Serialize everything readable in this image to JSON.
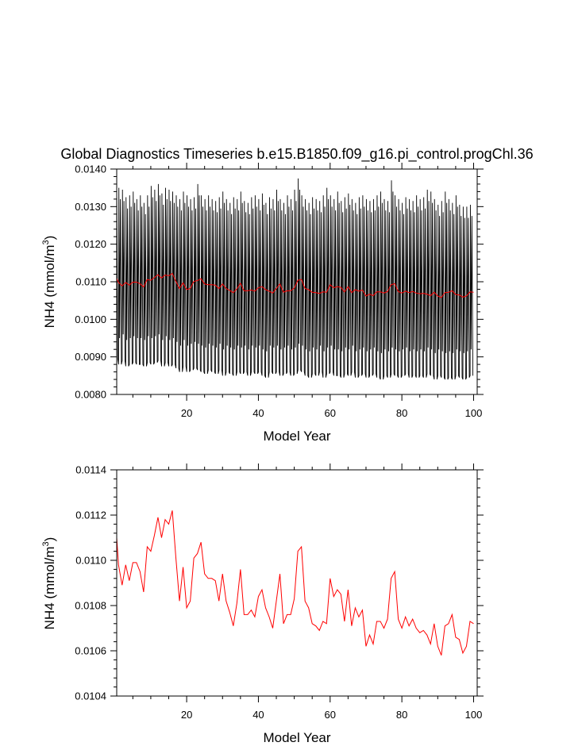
{
  "figure": {
    "title": "Global Diagnostics Timeseries b.e15.B1850.f09_g16.pi_control.progChl.36"
  },
  "colors": {
    "monthly_series": "#000000",
    "annual_series": "#ff0000",
    "axes": "#000000"
  },
  "chart_data": [
    {
      "type": "line",
      "xlabel": "Model Year",
      "ylabel_main": "NH4 (mmol/m",
      "ylabel_sup": "3",
      "ylabel_close": ")",
      "xlim": [
        0.5,
        101
      ],
      "ylim": [
        0.008,
        0.014
      ],
      "x_ticks": [
        20,
        40,
        60,
        80,
        100
      ],
      "x_tick_labels": [
        "20",
        "40",
        "60",
        "80",
        "100"
      ],
      "y_ticks": [
        0.008,
        0.009,
        0.01,
        0.011,
        0.012,
        0.013,
        0.014
      ],
      "y_tick_labels": [
        "0.0080",
        "0.0090",
        "0.0100",
        "0.0110",
        "0.0120",
        "0.0130",
        "0.0140"
      ],
      "grid": false,
      "monthly_envelope": {
        "years": [
          1,
          2,
          3,
          4,
          5,
          6,
          7,
          8,
          9,
          10,
          11,
          12,
          13,
          14,
          15,
          16,
          17,
          18,
          19,
          20,
          21,
          22,
          23,
          24,
          25,
          26,
          27,
          28,
          29,
          30,
          31,
          32,
          33,
          34,
          35,
          36,
          37,
          38,
          39,
          40,
          41,
          42,
          43,
          44,
          45,
          46,
          47,
          48,
          49,
          50,
          51,
          52,
          53,
          54,
          55,
          56,
          57,
          58,
          59,
          60,
          61,
          62,
          63,
          64,
          65,
          66,
          67,
          68,
          69,
          70,
          71,
          72,
          73,
          74,
          75,
          76,
          77,
          78,
          79,
          80,
          81,
          82,
          83,
          84,
          85,
          86,
          87,
          88,
          89,
          90,
          91,
          92,
          93,
          94,
          95,
          96,
          97,
          98,
          99,
          100
        ],
        "max": [
          0.01355,
          0.0135,
          0.01345,
          0.01325,
          0.0133,
          0.0134,
          0.0132,
          0.0133,
          0.0131,
          0.0133,
          0.01355,
          0.01345,
          0.0136,
          0.01335,
          0.0135,
          0.01345,
          0.0134,
          0.0133,
          0.0132,
          0.0134,
          0.0133,
          0.0132,
          0.01325,
          0.0136,
          0.0133,
          0.0132,
          0.0133,
          0.0132,
          0.01315,
          0.01325,
          0.0134,
          0.0132,
          0.0131,
          0.01325,
          0.0132,
          0.0134,
          0.01315,
          0.0131,
          0.01325,
          0.0133,
          0.0132,
          0.01335,
          0.0131,
          0.01325,
          0.0132,
          0.01345,
          0.0132,
          0.0131,
          0.0133,
          0.0132,
          0.01345,
          0.01375,
          0.0133,
          0.0132,
          0.0131,
          0.01325,
          0.0132,
          0.01315,
          0.0133,
          0.0135,
          0.0133,
          0.0132,
          0.0134,
          0.01315,
          0.01325,
          0.01335,
          0.0132,
          0.0131,
          0.01325,
          0.0133,
          0.0132,
          0.01315,
          0.0132,
          0.0133,
          0.0134,
          0.0132,
          0.01315,
          0.0137,
          0.0133,
          0.0132,
          0.0131,
          0.01325,
          0.0132,
          0.01315,
          0.0133,
          0.0132,
          0.01325,
          0.01345,
          0.0134,
          0.0132,
          0.01305,
          0.01315,
          0.0134,
          0.0132,
          0.0131,
          0.0133,
          0.01305,
          0.013,
          0.013,
          0.01305
        ],
        "min": [
          0.00895,
          0.0088,
          0.0089,
          0.00875,
          0.0088,
          0.00885,
          0.0088,
          0.0088,
          0.00875,
          0.00885,
          0.0088,
          0.00885,
          0.0089,
          0.00875,
          0.00885,
          0.00875,
          0.0088,
          0.0087,
          0.0086,
          0.00875,
          0.0086,
          0.00865,
          0.0087,
          0.00865,
          0.0086,
          0.00855,
          0.00865,
          0.0086,
          0.00855,
          0.00865,
          0.0085,
          0.0086,
          0.00855,
          0.0085,
          0.0086,
          0.00855,
          0.0086,
          0.0085,
          0.0086,
          0.00855,
          0.0086,
          0.0085,
          0.00845,
          0.0086,
          0.00855,
          0.0086,
          0.0085,
          0.00855,
          0.0086,
          0.0085,
          0.00855,
          0.00865,
          0.0086,
          0.0085,
          0.00845,
          0.00855,
          0.0085,
          0.0086,
          0.00845,
          0.00855,
          0.0086,
          0.0085,
          0.0085,
          0.00845,
          0.00855,
          0.0085,
          0.0086,
          0.00845,
          0.0085,
          0.00855,
          0.00845,
          0.0085,
          0.00855,
          0.00845,
          0.0084,
          0.0085,
          0.00845,
          0.00855,
          0.0085,
          0.00845,
          0.0085,
          0.00855,
          0.00845,
          0.0085,
          0.00845,
          0.0085,
          0.00845,
          0.00855,
          0.0085,
          0.0084,
          0.0085,
          0.00845,
          0.0084,
          0.00845,
          0.0084,
          0.0085,
          0.00845,
          0.0084,
          0.00845,
          0.0085
        ]
      },
      "annual_mean": {
        "x": [
          0.5,
          1,
          2,
          3,
          4,
          5,
          6,
          7,
          8,
          9,
          10,
          11,
          12,
          13,
          14,
          15,
          16,
          17,
          18,
          19,
          20,
          21,
          22,
          23,
          24,
          25,
          26,
          27,
          28,
          29,
          30,
          31,
          32,
          33,
          34,
          35,
          36,
          37,
          38,
          39,
          40,
          41,
          42,
          43,
          44,
          45,
          46,
          47,
          48,
          49,
          50,
          51,
          52,
          53,
          54,
          55,
          56,
          57,
          58,
          59,
          60,
          61,
          62,
          63,
          64,
          65,
          66,
          67,
          68,
          69,
          70,
          71,
          72,
          73,
          74,
          75,
          76,
          77,
          78,
          79,
          80,
          81,
          82,
          83,
          84,
          85,
          86,
          87,
          88,
          89,
          90,
          91,
          92,
          93,
          94,
          95,
          96,
          97,
          98,
          99,
          100
        ],
        "y": [
          0.0111,
          0.01098,
          0.01089,
          0.01098,
          0.01091,
          0.01099,
          0.01099,
          0.01095,
          0.01086,
          0.01106,
          0.01104,
          0.01111,
          0.01119,
          0.0111,
          0.01118,
          0.01116,
          0.01122,
          0.01101,
          0.01082,
          0.01097,
          0.01079,
          0.01082,
          0.01101,
          0.01103,
          0.01108,
          0.01094,
          0.01092,
          0.01092,
          0.01091,
          0.01082,
          0.01094,
          0.01082,
          0.01077,
          0.01071,
          0.01081,
          0.01096,
          0.01076,
          0.01076,
          0.01078,
          0.01075,
          0.01084,
          0.01087,
          0.01079,
          0.01075,
          0.0107,
          0.01082,
          0.01094,
          0.01072,
          0.01076,
          0.01076,
          0.01083,
          0.01104,
          0.01106,
          0.01082,
          0.01079,
          0.01072,
          0.01071,
          0.01069,
          0.01073,
          0.01072,
          0.01092,
          0.01084,
          0.01087,
          0.01085,
          0.01073,
          0.01087,
          0.01071,
          0.01079,
          0.01075,
          0.01078,
          0.01062,
          0.01067,
          0.01063,
          0.01073,
          0.01073,
          0.0107,
          0.01074,
          0.01092,
          0.01095,
          0.01074,
          0.0107,
          0.01075,
          0.01071,
          0.01074,
          0.0107,
          0.01068,
          0.01069,
          0.01067,
          0.01063,
          0.01072,
          0.01062,
          0.01058,
          0.01071,
          0.01072,
          0.01076,
          0.01066,
          0.01065,
          0.01059,
          0.01062,
          0.01073,
          0.01072
        ]
      }
    },
    {
      "type": "line",
      "xlabel": "Model Year",
      "ylabel_main": "NH4 (mmol/m",
      "ylabel_sup": "3",
      "ylabel_close": ")",
      "xlim": [
        0.5,
        101
      ],
      "ylim": [
        0.0104,
        0.0114
      ],
      "x_ticks": [
        20,
        40,
        60,
        80,
        100
      ],
      "x_tick_labels": [
        "20",
        "40",
        "60",
        "80",
        "100"
      ],
      "y_ticks": [
        0.0104,
        0.0106,
        0.0108,
        0.011,
        0.0112,
        0.0114
      ],
      "y_tick_labels": [
        "0.0104",
        "0.0106",
        "0.0108",
        "0.0110",
        "0.0112",
        "0.0114"
      ],
      "grid": false,
      "series": [
        {
          "x": [
            0.5,
            1,
            2,
            3,
            4,
            5,
            6,
            7,
            8,
            9,
            10,
            11,
            12,
            13,
            14,
            15,
            16,
            17,
            18,
            19,
            20,
            21,
            22,
            23,
            24,
            25,
            26,
            27,
            28,
            29,
            30,
            31,
            32,
            33,
            34,
            35,
            36,
            37,
            38,
            39,
            40,
            41,
            42,
            43,
            44,
            45,
            46,
            47,
            48,
            49,
            50,
            51,
            52,
            53,
            54,
            55,
            56,
            57,
            58,
            59,
            60,
            61,
            62,
            63,
            64,
            65,
            66,
            67,
            68,
            69,
            70,
            71,
            72,
            73,
            74,
            75,
            76,
            77,
            78,
            79,
            80,
            81,
            82,
            83,
            84,
            85,
            86,
            87,
            88,
            89,
            90,
            91,
            92,
            93,
            94,
            95,
            96,
            97,
            98,
            99,
            100
          ],
          "y": [
            0.0111,
            0.01098,
            0.01089,
            0.01098,
            0.01091,
            0.01099,
            0.01099,
            0.01095,
            0.01086,
            0.01106,
            0.01104,
            0.01111,
            0.01119,
            0.0111,
            0.01118,
            0.01116,
            0.01122,
            0.01101,
            0.01082,
            0.01097,
            0.01079,
            0.01082,
            0.01101,
            0.01103,
            0.01108,
            0.01094,
            0.01092,
            0.01092,
            0.01091,
            0.01082,
            0.01094,
            0.01082,
            0.01077,
            0.01071,
            0.01081,
            0.01096,
            0.01076,
            0.01076,
            0.01078,
            0.01075,
            0.01084,
            0.01087,
            0.01079,
            0.01075,
            0.0107,
            0.01082,
            0.01094,
            0.01072,
            0.01076,
            0.01076,
            0.01083,
            0.01104,
            0.01106,
            0.01082,
            0.01079,
            0.01072,
            0.01071,
            0.01069,
            0.01073,
            0.01072,
            0.01092,
            0.01084,
            0.01087,
            0.01085,
            0.01073,
            0.01087,
            0.01071,
            0.01079,
            0.01075,
            0.01078,
            0.01062,
            0.01067,
            0.01063,
            0.01073,
            0.01073,
            0.0107,
            0.01074,
            0.01092,
            0.01095,
            0.01074,
            0.0107,
            0.01075,
            0.01071,
            0.01074,
            0.0107,
            0.01068,
            0.01069,
            0.01067,
            0.01063,
            0.01072,
            0.01062,
            0.01058,
            0.01071,
            0.01072,
            0.01076,
            0.01066,
            0.01065,
            0.01059,
            0.01062,
            0.01073,
            0.01072
          ]
        }
      ]
    }
  ]
}
